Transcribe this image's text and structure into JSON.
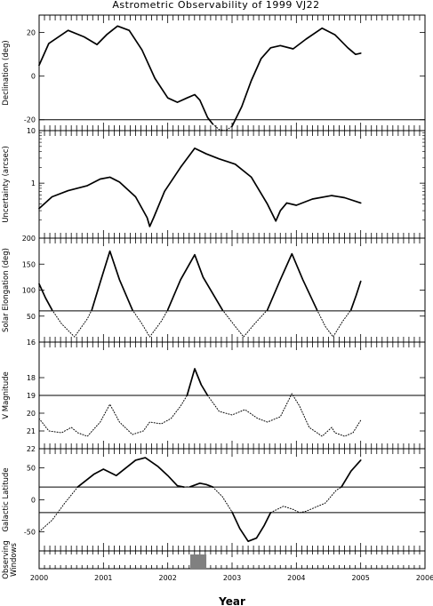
{
  "title": "Astrometric Observability of 1999 VJ22",
  "xlabel": "Year",
  "x_ticks": [
    "2000",
    "2001",
    "2002",
    "2003",
    "2004",
    "2005",
    "2006"
  ],
  "chart_data": [
    {
      "type": "line",
      "ylabel": "Declination (deg)",
      "xlim": [
        2000,
        2006
      ],
      "ylim": [
        -25,
        28
      ],
      "y_ticks": [
        {
          "value": 20,
          "label": "20"
        },
        {
          "value": 0,
          "label": "0"
        },
        {
          "value": -20,
          "label": "-20"
        }
      ],
      "hlines": [
        -20
      ],
      "series": [
        {
          "style": "solid",
          "points": [
            [
              2000.0,
              5
            ],
            [
              2000.15,
              15
            ],
            [
              2000.45,
              21
            ],
            [
              2000.7,
              18
            ],
            [
              2000.9,
              14.5
            ],
            [
              2001.05,
              19
            ],
            [
              2001.22,
              23
            ],
            [
              2001.4,
              21
            ],
            [
              2001.6,
              12
            ],
            [
              2001.8,
              -1
            ],
            [
              2002.0,
              -10
            ],
            [
              2002.15,
              -12
            ],
            [
              2002.3,
              -10
            ],
            [
              2002.42,
              -8.5
            ],
            [
              2002.5,
              -11
            ],
            [
              2002.62,
              -19
            ],
            [
              2002.7,
              -22
            ]
          ]
        },
        {
          "style": "dotted",
          "points": [
            [
              2002.7,
              -22
            ],
            [
              2002.8,
              -24.5
            ],
            [
              2002.9,
              -25
            ],
            [
              2003.0,
              -23
            ]
          ]
        },
        {
          "style": "solid",
          "points": [
            [
              2003.0,
              -23
            ],
            [
              2003.15,
              -14
            ],
            [
              2003.3,
              -2
            ],
            [
              2003.45,
              8
            ],
            [
              2003.6,
              13
            ],
            [
              2003.75,
              14
            ],
            [
              2003.95,
              12.5
            ],
            [
              2004.15,
              17
            ],
            [
              2004.4,
              22
            ],
            [
              2004.6,
              19
            ],
            [
              2004.8,
              13
            ],
            [
              2004.92,
              10
            ],
            [
              2005.0,
              10.5
            ]
          ]
        }
      ]
    },
    {
      "type": "line",
      "ylabel": "Uncertainty (arcsec)",
      "yscale": "log",
      "xlim": [
        2000,
        2006
      ],
      "ylim": [
        0.09,
        10
      ],
      "y_ticks": [
        {
          "value": 10,
          "label": "10"
        },
        {
          "value": 1,
          "label": "1"
        }
      ],
      "hlines": [],
      "series": [
        {
          "style": "solid",
          "points": [
            [
              2000.0,
              0.33
            ],
            [
              2000.2,
              0.55
            ],
            [
              2000.45,
              0.72
            ],
            [
              2000.75,
              0.9
            ],
            [
              2000.95,
              1.2
            ],
            [
              2001.1,
              1.3
            ],
            [
              2001.25,
              1.05
            ],
            [
              2001.5,
              0.55
            ],
            [
              2001.68,
              0.22
            ],
            [
              2001.72,
              0.15
            ],
            [
              2001.78,
              0.22
            ],
            [
              2001.95,
              0.7
            ],
            [
              2002.2,
              2.0
            ],
            [
              2002.42,
              4.6
            ],
            [
              2002.6,
              3.6
            ],
            [
              2002.8,
              2.9
            ],
            [
              2003.05,
              2.3
            ],
            [
              2003.3,
              1.3
            ],
            [
              2003.55,
              0.4
            ],
            [
              2003.68,
              0.19
            ],
            [
              2003.75,
              0.3
            ],
            [
              2003.85,
              0.42
            ],
            [
              2004.0,
              0.38
            ],
            [
              2004.25,
              0.5
            ],
            [
              2004.55,
              0.58
            ],
            [
              2004.75,
              0.53
            ],
            [
              2005.0,
              0.42
            ]
          ]
        }
      ]
    },
    {
      "type": "line",
      "ylabel": "Solar Elongation (deg)",
      "xlim": [
        2000,
        2006
      ],
      "ylim": [
        0,
        200
      ],
      "y_ticks": [
        {
          "value": 200,
          "label": "200"
        },
        {
          "value": 150,
          "label": "150"
        },
        {
          "value": 100,
          "label": "100"
        },
        {
          "value": 50,
          "label": "50"
        }
      ],
      "hlines": [
        60
      ],
      "series": [
        {
          "style": "solid",
          "points": [
            [
              2000.0,
              112
            ],
            [
              2000.1,
              85
            ],
            [
              2000.2,
              62
            ]
          ]
        },
        {
          "style": "dotted",
          "points": [
            [
              2000.2,
              62
            ],
            [
              2000.35,
              35
            ],
            [
              2000.55,
              10
            ],
            [
              2000.75,
              45
            ],
            [
              2000.82,
              62
            ]
          ]
        },
        {
          "style": "solid",
          "points": [
            [
              2000.82,
              62
            ],
            [
              2000.95,
              115
            ],
            [
              2001.1,
              175
            ],
            [
              2001.25,
              120
            ],
            [
              2001.45,
              62
            ]
          ]
        },
        {
          "style": "dotted",
          "points": [
            [
              2001.45,
              62
            ],
            [
              2001.6,
              35
            ],
            [
              2001.72,
              10
            ],
            [
              2001.9,
              40
            ],
            [
              2002.0,
              62
            ]
          ]
        },
        {
          "style": "solid",
          "points": [
            [
              2002.0,
              62
            ],
            [
              2002.2,
              120
            ],
            [
              2002.42,
              168
            ],
            [
              2002.55,
              125
            ],
            [
              2002.85,
              62
            ]
          ]
        },
        {
          "style": "dotted",
          "points": [
            [
              2002.85,
              62
            ],
            [
              2003.05,
              30
            ],
            [
              2003.18,
              10
            ],
            [
              2003.35,
              35
            ],
            [
              2003.55,
              62
            ]
          ]
        },
        {
          "style": "solid",
          "points": [
            [
              2003.55,
              62
            ],
            [
              2003.75,
              120
            ],
            [
              2003.93,
              170
            ],
            [
              2004.1,
              120
            ],
            [
              2004.32,
              62
            ]
          ]
        },
        {
          "style": "dotted",
          "points": [
            [
              2004.32,
              62
            ],
            [
              2004.45,
              30
            ],
            [
              2004.57,
              10
            ],
            [
              2004.72,
              40
            ],
            [
              2004.85,
              62
            ]
          ]
        },
        {
          "style": "solid",
          "points": [
            [
              2004.85,
              62
            ],
            [
              2004.93,
              90
            ],
            [
              2005.0,
              117
            ]
          ]
        }
      ]
    },
    {
      "type": "line",
      "ylabel": "V Magnitude",
      "yscale": "inverted",
      "xlim": [
        2000,
        2006
      ],
      "ylim": [
        22,
        16
      ],
      "y_ticks": [
        {
          "value": 16,
          "label": "16"
        },
        {
          "value": 18,
          "label": "18"
        },
        {
          "value": 19,
          "label": "19"
        },
        {
          "value": 20,
          "label": "20"
        },
        {
          "value": 21,
          "label": "21"
        },
        {
          "value": 22,
          "label": "22"
        }
      ],
      "hlines": [
        19
      ],
      "series": [
        {
          "style": "dotted",
          "points": [
            [
              2000.0,
              20.3
            ],
            [
              2000.15,
              21.0
            ],
            [
              2000.35,
              21.1
            ],
            [
              2000.5,
              20.8
            ],
            [
              2000.6,
              21.1
            ],
            [
              2000.75,
              21.3
            ],
            [
              2000.95,
              20.5
            ],
            [
              2001.1,
              19.5
            ],
            [
              2001.25,
              20.5
            ],
            [
              2001.45,
              21.2
            ],
            [
              2001.62,
              21.0
            ],
            [
              2001.72,
              20.5
            ],
            [
              2001.9,
              20.6
            ],
            [
              2002.05,
              20.3
            ],
            [
              2002.2,
              19.6
            ],
            [
              2002.3,
              19.0
            ]
          ]
        },
        {
          "style": "solid",
          "points": [
            [
              2002.3,
              19.0
            ],
            [
              2002.42,
              17.5
            ],
            [
              2002.52,
              18.4
            ],
            [
              2002.62,
              19.0
            ]
          ]
        },
        {
          "style": "dotted",
          "points": [
            [
              2002.62,
              19.0
            ],
            [
              2002.8,
              19.9
            ],
            [
              2003.0,
              20.1
            ],
            [
              2003.2,
              19.8
            ],
            [
              2003.4,
              20.3
            ],
            [
              2003.55,
              20.5
            ],
            [
              2003.75,
              20.2
            ],
            [
              2003.93,
              18.9
            ],
            [
              2004.05,
              19.6
            ],
            [
              2004.2,
              20.8
            ],
            [
              2004.4,
              21.3
            ],
            [
              2004.55,
              20.8
            ],
            [
              2004.6,
              21.1
            ],
            [
              2004.75,
              21.3
            ],
            [
              2004.88,
              21.1
            ],
            [
              2005.0,
              20.4
            ]
          ]
        }
      ]
    },
    {
      "type": "line",
      "ylabel": "Galactic Latitude",
      "xlim": [
        2000,
        2006
      ],
      "ylim": [
        -80,
        80
      ],
      "y_ticks": [
        {
          "value": 50,
          "label": "50"
        },
        {
          "value": 0,
          "label": "0"
        },
        {
          "value": -50,
          "label": "-50"
        }
      ],
      "hlines": [
        20,
        -20
      ],
      "series": [
        {
          "style": "dotted",
          "points": [
            [
              2000.0,
              -50
            ],
            [
              2000.2,
              -32
            ],
            [
              2000.4,
              -5
            ],
            [
              2000.6,
              20
            ]
          ]
        },
        {
          "style": "solid",
          "points": [
            [
              2000.6,
              20
            ],
            [
              2000.85,
              40
            ],
            [
              2001.0,
              48
            ],
            [
              2001.2,
              38
            ],
            [
              2001.5,
              62
            ],
            [
              2001.65,
              66
            ],
            [
              2001.85,
              52
            ],
            [
              2002.0,
              38
            ],
            [
              2002.15,
              22
            ],
            [
              2002.25,
              20
            ]
          ]
        },
        {
          "style": "dotted",
          "points": [
            [
              2002.25,
              20
            ],
            [
              2002.35,
              20.5
            ]
          ]
        },
        {
          "style": "solid",
          "points": [
            [
              2002.35,
              20.5
            ],
            [
              2002.5,
              26
            ],
            [
              2002.6,
              24
            ],
            [
              2002.7,
              20
            ]
          ]
        },
        {
          "style": "dotted",
          "points": [
            [
              2002.7,
              20
            ],
            [
              2002.85,
              5
            ],
            [
              2003.0,
              -19
            ]
          ]
        },
        {
          "style": "solid",
          "points": [
            [
              2003.0,
              -19
            ],
            [
              2003.12,
              -45
            ],
            [
              2003.25,
              -65
            ],
            [
              2003.38,
              -60
            ],
            [
              2003.5,
              -40
            ],
            [
              2003.6,
              -20
            ]
          ]
        },
        {
          "style": "dotted",
          "points": [
            [
              2003.6,
              -20
            ],
            [
              2003.8,
              -10
            ],
            [
              2003.95,
              -15
            ],
            [
              2004.05,
              -20
            ],
            [
              2004.15,
              -18
            ],
            [
              2004.45,
              -5
            ],
            [
              2004.62,
              15
            ],
            [
              2004.7,
              20
            ]
          ]
        },
        {
          "style": "solid",
          "points": [
            [
              2004.7,
              20
            ],
            [
              2004.85,
              45
            ],
            [
              2005.0,
              62
            ]
          ]
        }
      ]
    },
    {
      "type": "bar",
      "ylabel": "Observing Windows",
      "xlim": [
        2000,
        2006
      ],
      "windows": [
        [
          2002.35,
          2002.6
        ]
      ]
    }
  ]
}
